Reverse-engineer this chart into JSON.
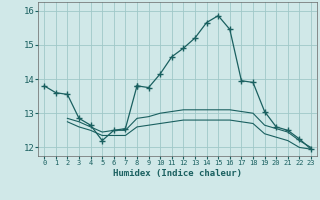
{
  "xlabel": "Humidex (Indice chaleur)",
  "background_color": "#d0e8e8",
  "grid_color": "#a0c8c8",
  "line_color": "#1a6060",
  "xlim": [
    -0.5,
    23.5
  ],
  "ylim": [
    11.75,
    16.25
  ],
  "yticks": [
    12,
    13,
    14,
    15,
    16
  ],
  "xtick_labels": [
    "0",
    "1",
    "2",
    "3",
    "4",
    "5",
    "6",
    "7",
    "8",
    "9",
    "10",
    "11",
    "12",
    "13",
    "14",
    "15",
    "16",
    "17",
    "18",
    "19",
    "20",
    "21",
    "22",
    "23"
  ],
  "series": [
    {
      "x": [
        0,
        1,
        2,
        3,
        4,
        5,
        6,
        7,
        8
      ],
      "y": [
        13.8,
        13.6,
        13.55,
        12.85,
        12.65,
        12.2,
        12.5,
        12.55,
        13.8
      ],
      "marker": true
    },
    {
      "x": [
        8,
        9,
        10,
        11,
        12,
        13,
        14,
        15,
        16,
        17,
        18,
        19,
        20,
        21,
        22,
        23
      ],
      "y": [
        13.8,
        13.75,
        14.15,
        14.65,
        14.9,
        15.2,
        15.65,
        15.85,
        15.45,
        13.95,
        13.9,
        13.05,
        12.6,
        12.5,
        12.25,
        11.95
      ],
      "marker": true
    },
    {
      "x": [
        2,
        3,
        4,
        5,
        6,
        7,
        8,
        9,
        10,
        11,
        12,
        13,
        14,
        15,
        16,
        17,
        18,
        19,
        20,
        21,
        22,
        23
      ],
      "y": [
        12.85,
        12.75,
        12.6,
        12.45,
        12.5,
        12.5,
        12.85,
        12.9,
        13.0,
        13.05,
        13.1,
        13.1,
        13.1,
        13.1,
        13.1,
        13.05,
        13.0,
        12.65,
        12.55,
        12.45,
        12.2,
        12.0
      ],
      "marker": false
    },
    {
      "x": [
        2,
        3,
        4,
        5,
        6,
        7,
        8,
        9,
        10,
        11,
        12,
        13,
        14,
        15,
        16,
        17,
        18,
        19,
        20,
        21,
        22,
        23
      ],
      "y": [
        12.75,
        12.6,
        12.5,
        12.35,
        12.35,
        12.35,
        12.6,
        12.65,
        12.7,
        12.75,
        12.8,
        12.8,
        12.8,
        12.8,
        12.8,
        12.75,
        12.7,
        12.4,
        12.3,
        12.2,
        12.0,
        11.95
      ],
      "marker": false
    }
  ]
}
